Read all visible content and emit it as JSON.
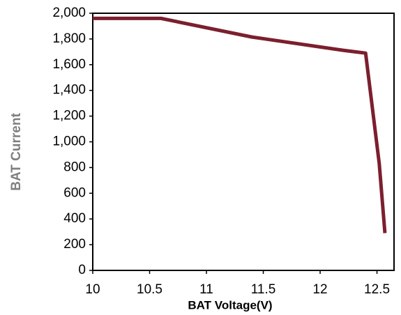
{
  "chart_data": {
    "type": "line",
    "xlabel": "BAT Voltage(V)",
    "ylabel": "BAT Current",
    "x": [
      10,
      10.6,
      11.4,
      12.2,
      12.4,
      12.52,
      12.57
    ],
    "series": [
      {
        "name": "BAT Current",
        "color": "#7b1f2e",
        "values": [
          1960,
          1960,
          1815,
          1712,
          1690,
          830,
          290
        ]
      }
    ],
    "xlim": [
      10,
      12.65
    ],
    "xticks": [
      10,
      10.5,
      11,
      11.5,
      12,
      12.5
    ],
    "ylim": [
      0,
      2000
    ],
    "yticks": [
      0,
      200,
      400,
      600,
      800,
      {
        "value": 1000,
        "label": "1,000"
      },
      {
        "value": 1200,
        "label": "1,200"
      },
      {
        "value": 1400,
        "label": "1,400"
      },
      {
        "value": 1600,
        "label": "1,600"
      },
      {
        "value": 1800,
        "label": "1,800"
      },
      {
        "value": 2000,
        "label": "2,000"
      }
    ],
    "grid": false,
    "legend": false
  }
}
